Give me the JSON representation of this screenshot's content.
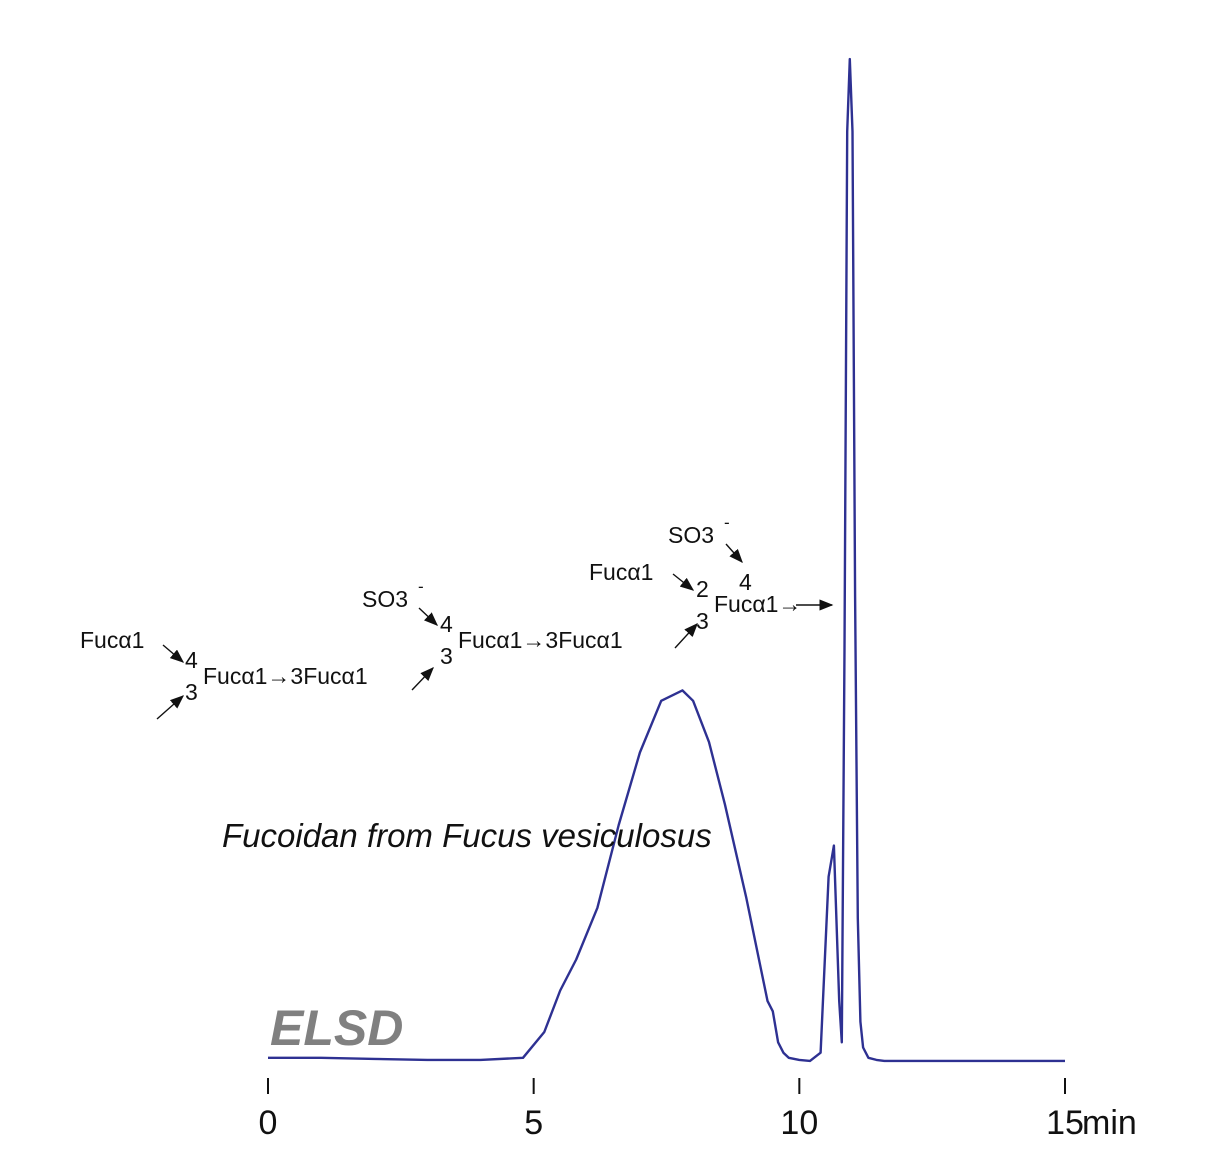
{
  "chart_data": {
    "type": "line",
    "detector_label": "ELSD",
    "sample_label": "Fucoidan from Fucus vesiculosus",
    "xlabel": "min",
    "ylabel": "",
    "xlim": [
      0,
      15
    ],
    "ylim": [
      0,
      100
    ],
    "x_ticks": [
      0,
      5,
      10,
      15
    ],
    "x_tick_labels": [
      "0",
      "5",
      "10",
      "15"
    ],
    "grid": false,
    "series": [
      {
        "color": "#2e3192",
        "x": [
          0,
          1,
          2,
          3,
          4,
          4.8,
          5.2,
          5.5,
          5.8,
          6.2,
          6.6,
          7.0,
          7.4,
          7.8,
          8.0,
          8.3,
          8.6,
          9.0,
          9.4,
          9.5,
          9.6,
          9.7,
          9.8,
          10.0,
          10.2,
          10.4,
          10.55,
          10.65,
          10.75,
          10.8,
          10.85,
          10.9,
          10.95,
          11.0,
          11.05,
          11.1,
          11.15,
          11.2,
          11.3,
          11.45,
          11.6,
          12,
          13,
          14,
          15
        ],
        "y": [
          0.5,
          0.5,
          0.4,
          0.3,
          0.3,
          0.5,
          3,
          7,
          10,
          15,
          23,
          30,
          35,
          36,
          35,
          31,
          25,
          16,
          6,
          5,
          2,
          1,
          0.5,
          0.3,
          0.2,
          1,
          18,
          21,
          6,
          2,
          40,
          90,
          97,
          90,
          45,
          14,
          4,
          1.5,
          0.5,
          0.3,
          0.2,
          0.2,
          0.2,
          0.2,
          0.2
        ]
      }
    ],
    "structure_text": {
      "seg1_left": "Fucα1",
      "seg1_4": "4",
      "seg1_3": "3",
      "seg1_main": "Fucα1→3Fucα1",
      "seg2_so3": "SO3",
      "seg2_minus": "-",
      "seg2_4": "4",
      "seg2_3": "3",
      "seg2_main": "Fucα1→3Fucα1",
      "seg3_so3": "SO3",
      "seg3_minus": "-",
      "seg3_left": "Fucα1",
      "seg3_2": "2",
      "seg3_4": "4",
      "seg3_3": "3",
      "seg3_main": "Fucα1→"
    }
  }
}
